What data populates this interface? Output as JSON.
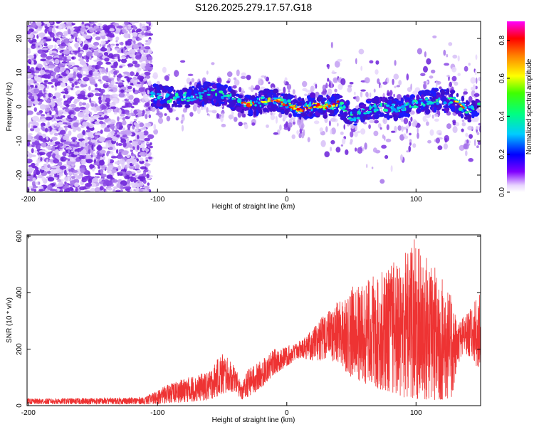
{
  "title": "S126.2025.279.17.57.G18",
  "chart_data": [
    {
      "type": "heatmap",
      "name": "spectrogram",
      "xlabel": "Height of straight line (km)",
      "ylabel": "Frequency (Hz)",
      "xlim": [
        -201,
        150
      ],
      "ylim": [
        -25,
        25
      ],
      "xticks": [
        -200,
        -100,
        0,
        100
      ],
      "yticks": [
        -20,
        -10,
        0,
        10,
        20
      ],
      "colorbar": {
        "label": "Normalized spectral amplitude",
        "range": [
          0.0,
          0.9
        ],
        "ticks": [
          "0.0",
          "0.2",
          "0.4",
          "0.6",
          "0.8"
        ]
      },
      "noise_region_x": [
        -201,
        -105
      ],
      "ridge": [
        {
          "x": -105,
          "y": 3.5
        },
        {
          "x": -90,
          "y": 2.5
        },
        {
          "x": -75,
          "y": 3.0
        },
        {
          "x": -60,
          "y": 4.0
        },
        {
          "x": -45,
          "y": 3.0
        },
        {
          "x": -35,
          "y": 1.5
        },
        {
          "x": -28,
          "y": 0.5
        },
        {
          "x": -20,
          "y": 1.5
        },
        {
          "x": -12,
          "y": 2.0
        },
        {
          "x": -5,
          "y": 1.5
        },
        {
          "x": 5,
          "y": 0.0
        },
        {
          "x": 12,
          "y": -1.0
        },
        {
          "x": 20,
          "y": 0.5
        },
        {
          "x": 30,
          "y": 0.0
        },
        {
          "x": 40,
          "y": 1.0
        },
        {
          "x": 50,
          "y": -3.0
        },
        {
          "x": 60,
          "y": -1.5
        },
        {
          "x": 70,
          "y": 0.0
        },
        {
          "x": 85,
          "y": -0.5
        },
        {
          "x": 100,
          "y": 1.0
        },
        {
          "x": 115,
          "y": 2.0
        },
        {
          "x": 132,
          "y": 1.5
        },
        {
          "x": 140,
          "y": -1.5
        },
        {
          "x": 150,
          "y": 0.5
        }
      ]
    },
    {
      "type": "line",
      "name": "snr",
      "xlabel": "Height of straight line (km)",
      "ylabel": "SNR (10 * v/v)",
      "xlim": [
        -201,
        150
      ],
      "ylim": [
        0,
        605
      ],
      "xticks": [
        -200,
        -100,
        0,
        100
      ],
      "yticks": [
        0,
        200,
        400,
        600
      ],
      "color": "#ee3333",
      "envelope": [
        {
          "x": -201,
          "lo": 5,
          "hi": 25
        },
        {
          "x": -110,
          "lo": 5,
          "hi": 30
        },
        {
          "x": -100,
          "lo": 5,
          "hi": 55
        },
        {
          "x": -90,
          "lo": 10,
          "hi": 80
        },
        {
          "x": -70,
          "lo": 15,
          "hi": 110
        },
        {
          "x": -60,
          "lo": 20,
          "hi": 120
        },
        {
          "x": -50,
          "lo": 40,
          "hi": 190
        },
        {
          "x": -40,
          "lo": 50,
          "hi": 140
        },
        {
          "x": -35,
          "lo": 20,
          "hi": 75
        },
        {
          "x": -30,
          "lo": 30,
          "hi": 130
        },
        {
          "x": -20,
          "lo": 60,
          "hi": 160
        },
        {
          "x": -10,
          "lo": 110,
          "hi": 200
        },
        {
          "x": 0,
          "lo": 140,
          "hi": 210
        },
        {
          "x": 10,
          "lo": 170,
          "hi": 230
        },
        {
          "x": 20,
          "lo": 160,
          "hi": 270
        },
        {
          "x": 30,
          "lo": 160,
          "hi": 330
        },
        {
          "x": 40,
          "lo": 150,
          "hi": 370
        },
        {
          "x": 50,
          "lo": 100,
          "hi": 420
        },
        {
          "x": 60,
          "lo": 80,
          "hi": 440
        },
        {
          "x": 70,
          "lo": 60,
          "hi": 470
        },
        {
          "x": 80,
          "lo": 50,
          "hi": 500
        },
        {
          "x": 90,
          "lo": 30,
          "hi": 540
        },
        {
          "x": 98,
          "lo": 20,
          "hi": 600
        },
        {
          "x": 110,
          "lo": 20,
          "hi": 520
        },
        {
          "x": 120,
          "lo": 20,
          "hi": 460
        },
        {
          "x": 128,
          "lo": 30,
          "hi": 380
        },
        {
          "x": 132,
          "lo": 150,
          "hi": 300
        },
        {
          "x": 140,
          "lo": 180,
          "hi": 330
        },
        {
          "x": 150,
          "lo": 120,
          "hi": 400
        }
      ]
    }
  ]
}
